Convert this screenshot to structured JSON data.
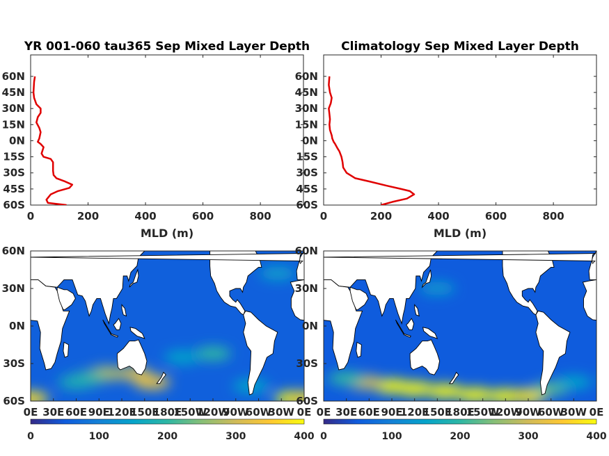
{
  "chart_data": [
    {
      "type": "line",
      "title": "YR 001-060 tau365 Sep Mixed Layer Depth",
      "xlabel": "MLD (m)",
      "ylabel": "",
      "xlim": [
        0,
        950
      ],
      "ylim": [
        -60,
        80
      ],
      "xticks": [
        "0",
        "200",
        "400",
        "600",
        "800"
      ],
      "yticks": [
        "60N",
        "45N",
        "30N",
        "15N",
        "0N",
        "15S",
        "30S",
        "45S",
        "60S"
      ],
      "line_color": "#e00000",
      "series": [
        {
          "x": [
            125,
            60,
            55,
            70,
            95,
            135,
            145,
            120,
            90,
            80,
            78,
            78,
            70,
            45,
            38,
            45,
            35,
            25,
            30,
            35,
            30,
            20,
            25,
            35,
            35,
            20,
            12,
            10,
            12,
            15
          ],
          "y": [
            -60,
            -58,
            -55,
            -50,
            -47,
            -44,
            -41,
            -38,
            -35,
            -32,
            -28,
            -20,
            -17,
            -15,
            -12,
            -6,
            -3,
            -1,
            2,
            8,
            12,
            17,
            22,
            26,
            30,
            34,
            40,
            45,
            55,
            60
          ]
        }
      ]
    },
    {
      "type": "line",
      "title": "Climatology Sep Mixed Layer Depth",
      "xlabel": "MLD (m)",
      "ylabel": "",
      "xlim": [
        0,
        950
      ],
      "ylim": [
        -60,
        80
      ],
      "xticks": [
        "0",
        "200",
        "400",
        "600",
        "800"
      ],
      "yticks": [
        "60N",
        "45N",
        "30N",
        "15N",
        "0N",
        "15S",
        "30S",
        "45S",
        "60S"
      ],
      "line_color": "#e00000",
      "series": [
        {
          "x": [
            200,
            240,
            290,
            315,
            300,
            270,
            220,
            160,
            110,
            80,
            68,
            66,
            62,
            55,
            48,
            40,
            35,
            30,
            28,
            22,
            20,
            22,
            20,
            18,
            25,
            28,
            22,
            18,
            20
          ],
          "y": [
            -60,
            -57,
            -54,
            -50,
            -47,
            -45,
            -42,
            -38,
            -35,
            -30,
            -25,
            -20,
            -15,
            -10,
            -7,
            -3,
            -1,
            2,
            5,
            10,
            15,
            20,
            25,
            30,
            35,
            40,
            45,
            52,
            60
          ]
        }
      ]
    },
    {
      "type": "heatmap",
      "title": "",
      "xticks": [
        "0E",
        "30E",
        "60E",
        "90E",
        "120E",
        "150E",
        "180E",
        "150W",
        "120W",
        "90W",
        "60W",
        "30W",
        "0E"
      ],
      "yticks": [
        "60N",
        "30N",
        "0N",
        "30S",
        "60S"
      ],
      "colorbar_ticks": [
        "0",
        "100",
        "200",
        "300",
        "400"
      ],
      "clim": [
        0,
        400
      ],
      "colormap": [
        "#352a87",
        "#0f5cdd",
        "#1481d6",
        "#06a4ca",
        "#2eb7a4",
        "#87bf77",
        "#d1bb59",
        "#fec832",
        "#f9fb0e"
      ],
      "background_mld": 55,
      "features": [
        {
          "lon": 135,
          "lat": -38,
          "value": 300
        },
        {
          "lon": 100,
          "lat": -38,
          "value": 280
        },
        {
          "lon": 160,
          "lat": -45,
          "value": 330
        },
        {
          "lon": 75,
          "lat": -42,
          "value": 210
        },
        {
          "lon": 60,
          "lat": -45,
          "value": 180
        },
        {
          "lon": 240,
          "lat": -22,
          "value": 200
        },
        {
          "lon": 200,
          "lat": -25,
          "value": 150
        },
        {
          "lon": 345,
          "lat": -58,
          "value": 400
        },
        {
          "lon": 0,
          "lat": -58,
          "value": 370
        },
        {
          "lon": 325,
          "lat": 42,
          "value": 140
        },
        {
          "lon": 290,
          "lat": -48,
          "value": 150
        }
      ]
    },
    {
      "type": "heatmap",
      "title": "",
      "xticks": [
        "0E",
        "30E",
        "60E",
        "90E",
        "120E",
        "150E",
        "180E",
        "150W",
        "120W",
        "90W",
        "60W",
        "30W",
        "0E"
      ],
      "yticks": [
        "60N",
        "30N",
        "0N",
        "30S",
        "60S"
      ],
      "colorbar_ticks": [
        "0",
        "100",
        "200",
        "300",
        "400"
      ],
      "clim": [
        0,
        400
      ],
      "colormap": [
        "#352a87",
        "#0f5cdd",
        "#1481d6",
        "#06a4ca",
        "#2eb7a4",
        "#87bf77",
        "#d1bb59",
        "#fec832",
        "#f9fb0e"
      ],
      "background_mld": 50,
      "features": [
        {
          "lon": 90,
          "lat": -48,
          "value": 400
        },
        {
          "lon": 120,
          "lat": -50,
          "value": 400
        },
        {
          "lon": 160,
          "lat": -52,
          "value": 400
        },
        {
          "lon": 200,
          "lat": -55,
          "value": 400
        },
        {
          "lon": 240,
          "lat": -56,
          "value": 400
        },
        {
          "lon": 270,
          "lat": -56,
          "value": 380
        },
        {
          "lon": 55,
          "lat": -45,
          "value": 300
        },
        {
          "lon": 30,
          "lat": -42,
          "value": 200
        },
        {
          "lon": 300,
          "lat": -50,
          "value": 220
        },
        {
          "lon": 330,
          "lat": -45,
          "value": 150
        },
        {
          "lon": 150,
          "lat": 30,
          "value": 130
        }
      ]
    }
  ]
}
